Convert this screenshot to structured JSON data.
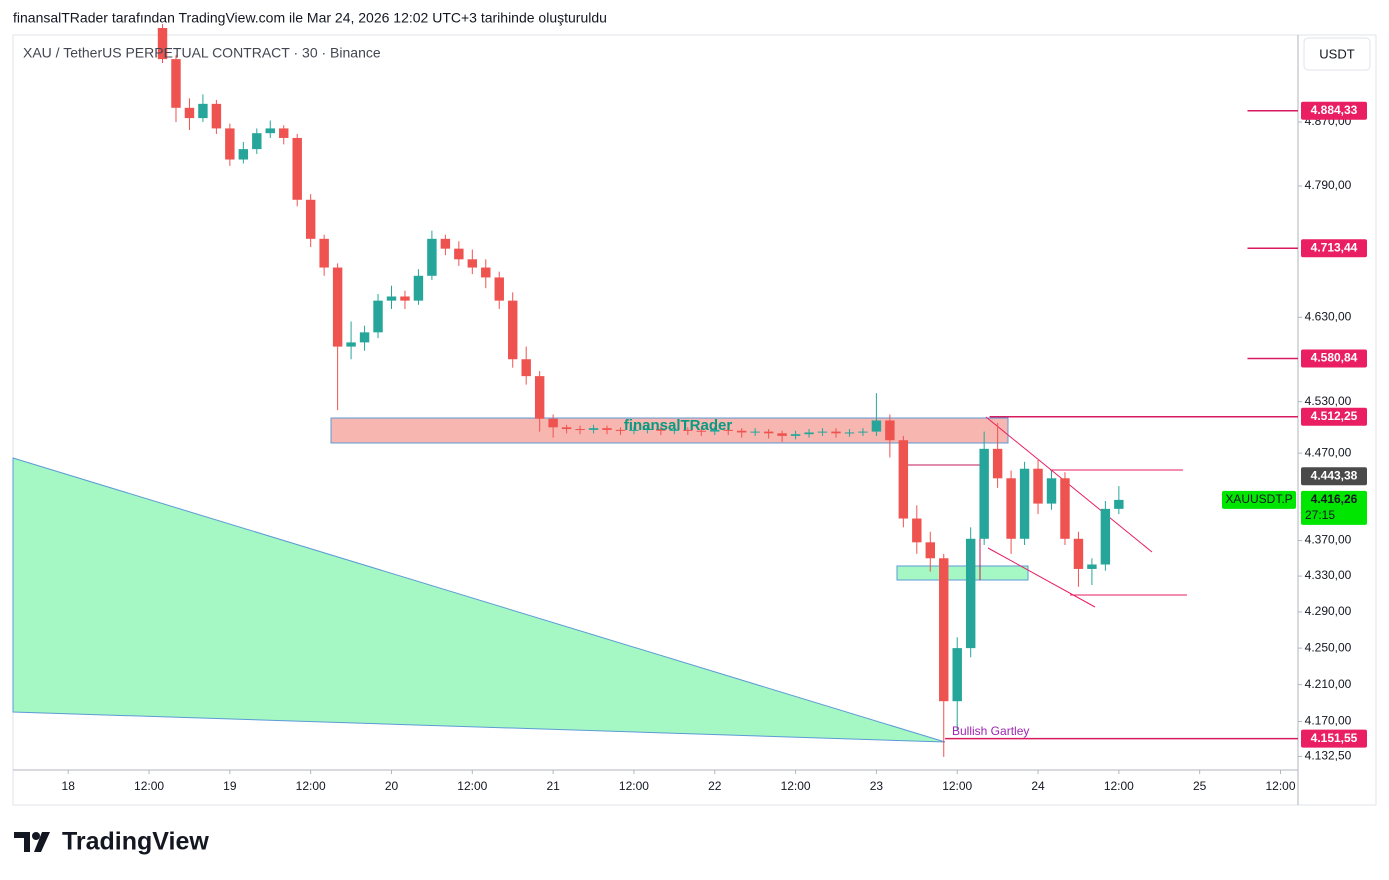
{
  "header": "finansalTRader tarafından TradingView.com ile Mar 24, 2026 12:02 UTC+3 tarihinde oluşturuldu",
  "symbol": "XAU / TetherUS PERPETUAL CONTRACT · 30 · Binance",
  "currency": "USDT",
  "brand": "TradingView",
  "watermark": "finansalTRader",
  "pattern_label": "Bullish Gartley",
  "chart_data": {
    "type": "candlestick",
    "log_scale": true,
    "grid": false,
    "up_color": "#26a69a",
    "down_color": "#ef5350",
    "xlim": [
      -8.2,
      182.6
    ],
    "ylim": [
      4118,
      4981
    ],
    "xticks": [
      {
        "value": 0,
        "label": "18"
      },
      {
        "value": 12,
        "label": "12:00"
      },
      {
        "value": 24,
        "label": "19"
      },
      {
        "value": 36,
        "label": "12:00"
      },
      {
        "value": 48,
        "label": "20"
      },
      {
        "value": 60,
        "label": "12:00"
      },
      {
        "value": 72,
        "label": "21"
      },
      {
        "value": 84,
        "label": "12:00"
      },
      {
        "value": 96,
        "label": "22"
      },
      {
        "value": 108,
        "label": "12:00"
      },
      {
        "value": 120,
        "label": "23"
      },
      {
        "value": 132,
        "label": "12:00"
      },
      {
        "value": 144,
        "label": "24"
      },
      {
        "value": 156,
        "label": "12:00"
      },
      {
        "value": 168,
        "label": "25"
      },
      {
        "value": 180,
        "label": "12:00"
      }
    ],
    "yticks": [
      {
        "value": 4870,
        "label": "4.870,00"
      },
      {
        "value": 4790,
        "label": "4.790,00"
      },
      {
        "value": 4630,
        "label": "4.630,00"
      },
      {
        "value": 4530,
        "label": "4.530,00"
      },
      {
        "value": 4470,
        "label": "4.470,00"
      },
      {
        "value": 4370,
        "label": "4.370,00"
      },
      {
        "value": 4330,
        "label": "4.330,00"
      },
      {
        "value": 4290,
        "label": "4.290,00"
      },
      {
        "value": 4250,
        "label": "4.250,00"
      },
      {
        "value": 4210,
        "label": "4.210,00"
      },
      {
        "value": 4170,
        "label": "4.170,00"
      },
      {
        "value": 4132.5,
        "label": "4.132,50"
      }
    ],
    "x": [
      14,
      16,
      18,
      20,
      22,
      24,
      26,
      28,
      30,
      32,
      34,
      36,
      38,
      40,
      42,
      44,
      46,
      48,
      50,
      52,
      54,
      56,
      58,
      60,
      62,
      64,
      66,
      68,
      70,
      72,
      74,
      76,
      78,
      80,
      82,
      84,
      86,
      88,
      90,
      92,
      94,
      96,
      98,
      100,
      102,
      104,
      106,
      108,
      110,
      112,
      114,
      116,
      118,
      120,
      122,
      124,
      126,
      128,
      130,
      132,
      134,
      136,
      138,
      140,
      142,
      144,
      146,
      148,
      150,
      152,
      154,
      156
    ],
    "candles": [
      [
        4990,
        4995,
        4945,
        4950
      ],
      [
        4950,
        4955,
        4870,
        4888
      ],
      [
        4888,
        4900,
        4860,
        4875
      ],
      [
        4875,
        4905,
        4870,
        4893
      ],
      [
        4893,
        4898,
        4855,
        4862
      ],
      [
        4862,
        4868,
        4815,
        4823
      ],
      [
        4823,
        4845,
        4818,
        4836
      ],
      [
        4836,
        4862,
        4830,
        4856
      ],
      [
        4856,
        4872,
        4850,
        4862
      ],
      [
        4862,
        4866,
        4842,
        4850
      ],
      [
        4850,
        4855,
        4765,
        4773
      ],
      [
        4773,
        4780,
        4715,
        4725
      ],
      [
        4725,
        4730,
        4680,
        4690
      ],
      [
        4690,
        4695,
        4520,
        4595
      ],
      [
        4595,
        4625,
        4580,
        4600
      ],
      [
        4600,
        4620,
        4590,
        4612
      ],
      [
        4612,
        4658,
        4605,
        4650
      ],
      [
        4650,
        4668,
        4640,
        4655
      ],
      [
        4655,
        4662,
        4640,
        4650
      ],
      [
        4650,
        4688,
        4645,
        4680
      ],
      [
        4680,
        4735,
        4675,
        4725
      ],
      [
        4725,
        4730,
        4705,
        4713
      ],
      [
        4713,
        4722,
        4692,
        4700
      ],
      [
        4700,
        4712,
        4682,
        4690
      ],
      [
        4690,
        4700,
        4665,
        4678
      ],
      [
        4678,
        4685,
        4640,
        4650
      ],
      [
        4650,
        4660,
        4570,
        4580
      ],
      [
        4580,
        4595,
        4550,
        4560
      ],
      [
        4560,
        4566,
        4495,
        4510
      ],
      [
        4510,
        4515,
        4488,
        4500
      ],
      [
        4500,
        4503,
        4493,
        4498
      ],
      [
        4498,
        4502,
        4492,
        4497
      ],
      [
        4497,
        4503,
        4493,
        4499
      ],
      [
        4499,
        4502,
        4492,
        4497
      ],
      [
        4497,
        4500,
        4491,
        4496
      ],
      [
        4496,
        4501,
        4492,
        4497
      ],
      [
        4497,
        4502,
        4493,
        4498
      ],
      [
        4498,
        4501,
        4491,
        4496
      ],
      [
        4496,
        4501,
        4492,
        4497
      ],
      [
        4497,
        4500,
        4491,
        4496
      ],
      [
        4496,
        4499,
        4490,
        4495
      ],
      [
        4495,
        4501,
        4491,
        4497
      ],
      [
        4497,
        4500,
        4491,
        4496
      ],
      [
        4496,
        4499,
        4488,
        4494
      ],
      [
        4494,
        4499,
        4490,
        4495
      ],
      [
        4495,
        4498,
        4487,
        4493
      ],
      [
        4493,
        4496,
        4483,
        4490
      ],
      [
        4490,
        4496,
        4486,
        4492
      ],
      [
        4492,
        4498,
        4488,
        4494
      ],
      [
        4494,
        4499,
        4490,
        4495
      ],
      [
        4495,
        4499,
        4488,
        4493
      ],
      [
        4493,
        4498,
        4489,
        4494
      ],
      [
        4494,
        4499,
        4490,
        4495
      ],
      [
        4495,
        4540,
        4490,
        4508
      ],
      [
        4508,
        4515,
        4465,
        4485
      ],
      [
        4485,
        4490,
        4385,
        4395
      ],
      [
        4395,
        4410,
        4355,
        4368
      ],
      [
        4368,
        4380,
        4335,
        4350
      ],
      [
        4350,
        4355,
        4132,
        4192
      ],
      [
        4192,
        4262,
        4160,
        4250
      ],
      [
        4250,
        4385,
        4240,
        4372
      ],
      [
        4372,
        4495,
        4365,
        4475
      ],
      [
        4475,
        4505,
        4430,
        4441
      ],
      [
        4441,
        4450,
        4355,
        4372
      ],
      [
        4372,
        4460,
        4365,
        4452
      ],
      [
        4452,
        4462,
        4400,
        4412
      ],
      [
        4412,
        4450,
        4405,
        4441
      ],
      [
        4441,
        4448,
        4365,
        4372
      ],
      [
        4372,
        4380,
        4318,
        4338
      ],
      [
        4338,
        4350,
        4320,
        4343
      ],
      [
        4343,
        4415,
        4336,
        4406
      ],
      [
        4406,
        4432,
        4400,
        4416.26
      ]
    ],
    "levels": [
      {
        "price": {
          "value": 4884.33,
          "label": "4.884,33"
        },
        "from": 175.1
      },
      {
        "price": {
          "value": 4713.44,
          "label": "4.713,44"
        },
        "from": 175.1
      },
      {
        "price": {
          "value": 4580.84,
          "label": "4.580,84"
        },
        "from": 175.1
      },
      {
        "price": {
          "value": 4512.25,
          "label": "4.512,25"
        },
        "from": 136.8
      },
      {
        "price": {
          "value": 4151.55,
          "label": "4.151,55"
        },
        "from": 130.2
      }
    ],
    "level_color": "#d81b60",
    "prev_price": {
      "value": 4443.38,
      "label": "4.443,38"
    },
    "last_price": {
      "value": 4416.26,
      "label": "4.416,26"
    },
    "countdown": "27:15",
    "ticker": "XAUUSDT.P"
  }
}
